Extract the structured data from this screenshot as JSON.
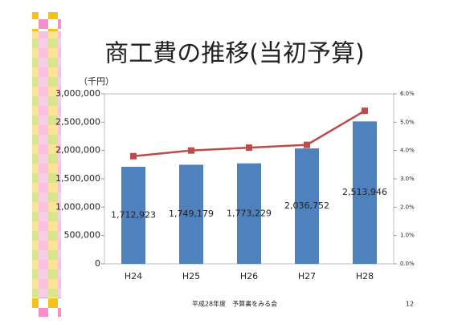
{
  "chart_data": {
    "type": "bar",
    "title": "商工費の推移(当初予算)",
    "y_label": "（千円）",
    "categories": [
      "H24",
      "H25",
      "H26",
      "H27",
      "H28"
    ],
    "series": [
      {
        "type": "bar",
        "color": "#4f81bd",
        "values": [
          1712923,
          1749179,
          1773229,
          2036752,
          2513946
        ],
        "value_labels": [
          "1,712,923",
          "1,749,179",
          "1,773,229",
          "2,036,752",
          "2,513,946"
        ]
      },
      {
        "type": "line",
        "axis": "y2",
        "color": "#be4b48",
        "values": [
          3.8,
          4.0,
          4.1,
          4.2,
          5.4
        ]
      }
    ],
    "ylim": [
      0,
      3000000
    ],
    "yticks": [
      0,
      {
        "value": 500000,
        "label": "500,000"
      },
      {
        "value": 1000000,
        "label": "1,000,000"
      },
      {
        "value": 1500000,
        "label": "1,500,000"
      },
      {
        "value": 2000000,
        "label": "2,000,000"
      },
      {
        "value": 2500000,
        "label": "2,500,000"
      },
      {
        "value": 3000000,
        "label": "3,000,000"
      }
    ],
    "y2lim": [
      0,
      6
    ],
    "y2ticks": [
      {
        "value": 0,
        "label": "0.0%"
      },
      {
        "value": 1,
        "label": "1.0%"
      },
      {
        "value": 2,
        "label": "2.0%"
      },
      {
        "value": 3,
        "label": "3.0%"
      },
      {
        "value": 4,
        "label": "4.0%"
      },
      {
        "value": 5,
        "label": "5.0%"
      },
      {
        "value": 6,
        "label": "6.0%"
      }
    ]
  },
  "footer": {
    "text": "平成28年度　予算書をみる会",
    "page": "12"
  }
}
